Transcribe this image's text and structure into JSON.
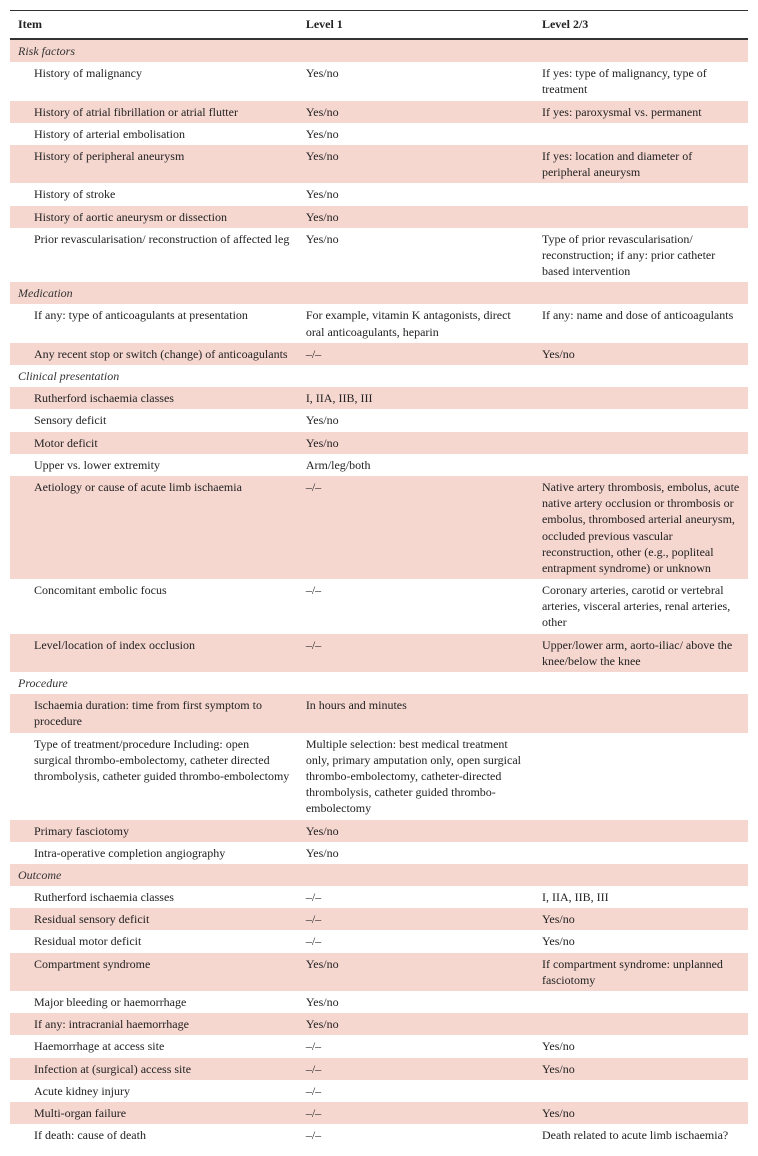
{
  "columns": [
    "Item",
    "Level 1",
    "Level 2/3"
  ],
  "sections": [
    {
      "name": "Risk factors",
      "rows": [
        {
          "item": "History of malignancy",
          "l1": "Yes/no",
          "l2": "If yes: type of malignancy, type of treatment"
        },
        {
          "item": "History of atrial fibrillation or atrial flutter",
          "l1": "Yes/no",
          "l2": "If yes: paroxysmal vs. permanent"
        },
        {
          "item": "History of arterial embolisation",
          "l1": "Yes/no",
          "l2": ""
        },
        {
          "item": "History of peripheral aneurysm",
          "l1": "Yes/no",
          "l2": "If yes: location and diameter of peripheral aneurysm"
        },
        {
          "item": "History of stroke",
          "l1": "Yes/no",
          "l2": ""
        },
        {
          "item": "History of aortic aneurysm or dissection",
          "l1": "Yes/no",
          "l2": ""
        },
        {
          "item": "Prior revascularisation/ reconstruction of affected leg",
          "l1": "Yes/no",
          "l2": "Type of prior revascularisation/ reconstruction; if any: prior catheter based intervention"
        }
      ]
    },
    {
      "name": "Medication",
      "rows": [
        {
          "item": "If any: type of anticoagulants at presentation",
          "l1": "For example, vitamin K antagonists, direct oral anticoagulants, heparin",
          "l2": "If any: name and dose of anticoagulants"
        },
        {
          "item": "Any recent stop or switch (change) of anticoagulants",
          "l1": "–/–",
          "l2": "Yes/no"
        }
      ]
    },
    {
      "name": "Clinical presentation",
      "rows": [
        {
          "item": "Rutherford ischaemia classes",
          "l1": "I, IIA, IIB, III",
          "l2": ""
        },
        {
          "item": "Sensory deficit",
          "l1": "Yes/no",
          "l2": ""
        },
        {
          "item": "Motor deficit",
          "l1": "Yes/no",
          "l2": ""
        },
        {
          "item": "Upper vs. lower extremity",
          "l1": "Arm/leg/both",
          "l2": ""
        },
        {
          "item": "Aetiology or cause of acute limb ischaemia",
          "l1": "–/–",
          "l2": "Native artery thrombosis, embolus, acute native artery occlusion or thrombosis or embolus, thrombosed arterial aneurysm, occluded previous vascular reconstruction, other (e.g., popliteal entrapment syndrome) or unknown"
        },
        {
          "item": "Concomitant embolic focus",
          "l1": "–/–",
          "l2": "Coronary arteries, carotid or vertebral arteries, visceral arteries, renal arteries, other"
        },
        {
          "item": "Level/location of index occlusion",
          "l1": "–/–",
          "l2": "Upper/lower arm, aorto-iliac/ above the knee/below the knee"
        }
      ]
    },
    {
      "name": "Procedure",
      "rows": [
        {
          "item": "Ischaemia duration: time from first symptom to procedure",
          "l1": "In hours and minutes",
          "l2": ""
        },
        {
          "item": "Type of treatment/procedure Including: open surgical thrombo-embolectomy, catheter directed thrombolysis, catheter guided thrombo-embolectomy",
          "l1": "Multiple selection: best medical treatment only, primary amputation only, open surgical thrombo-embolectomy, catheter-directed thrombolysis, catheter guided thrombo-embolectomy",
          "l2": ""
        },
        {
          "item": "Primary fasciotomy",
          "l1": "Yes/no",
          "l2": ""
        },
        {
          "item": "Intra-operative completion angiography",
          "l1": "Yes/no",
          "l2": ""
        }
      ]
    },
    {
      "name": "Outcome",
      "rows": [
        {
          "item": "Rutherford ischaemia classes",
          "l1": "–/–",
          "l2": "I, IIA, IIB, III"
        },
        {
          "item": "Residual sensory deficit",
          "l1": "–/–",
          "l2": "Yes/no"
        },
        {
          "item": "Residual motor deficit",
          "l1": "–/–",
          "l2": "Yes/no"
        },
        {
          "item": "Compartment syndrome",
          "l1": "Yes/no",
          "l2": "If compartment syndrome: unplanned fasciotomy"
        },
        {
          "item": "Major bleeding or haemorrhage",
          "l1": "Yes/no",
          "l2": ""
        },
        {
          "item": "If any: intracranial haemorrhage",
          "l1": "Yes/no",
          "l2": ""
        },
        {
          "item": "Haemorrhage at access site",
          "l1": "–/–",
          "l2": "Yes/no"
        },
        {
          "item": "Infection at (surgical) access site",
          "l1": "–/–",
          "l2": "Yes/no"
        },
        {
          "item": "Acute kidney injury",
          "l1": "–/–",
          "l2": ""
        },
        {
          "item": "Multi-organ failure",
          "l1": "–/–",
          "l2": "Yes/no"
        },
        {
          "item": "If death: cause of death",
          "l1": "–/–",
          "l2": "Death related to acute limb ischaemia?"
        }
      ]
    }
  ],
  "colors": {
    "stripe": "#f5d7d0",
    "background": "#ffffff",
    "text": "#222222",
    "rule": "#333333"
  },
  "typography": {
    "font_family": "Georgia, 'Times New Roman', serif",
    "font_size_pt": 9,
    "line_height": 1.35
  },
  "column_widths_pct": [
    39,
    32,
    29
  ]
}
